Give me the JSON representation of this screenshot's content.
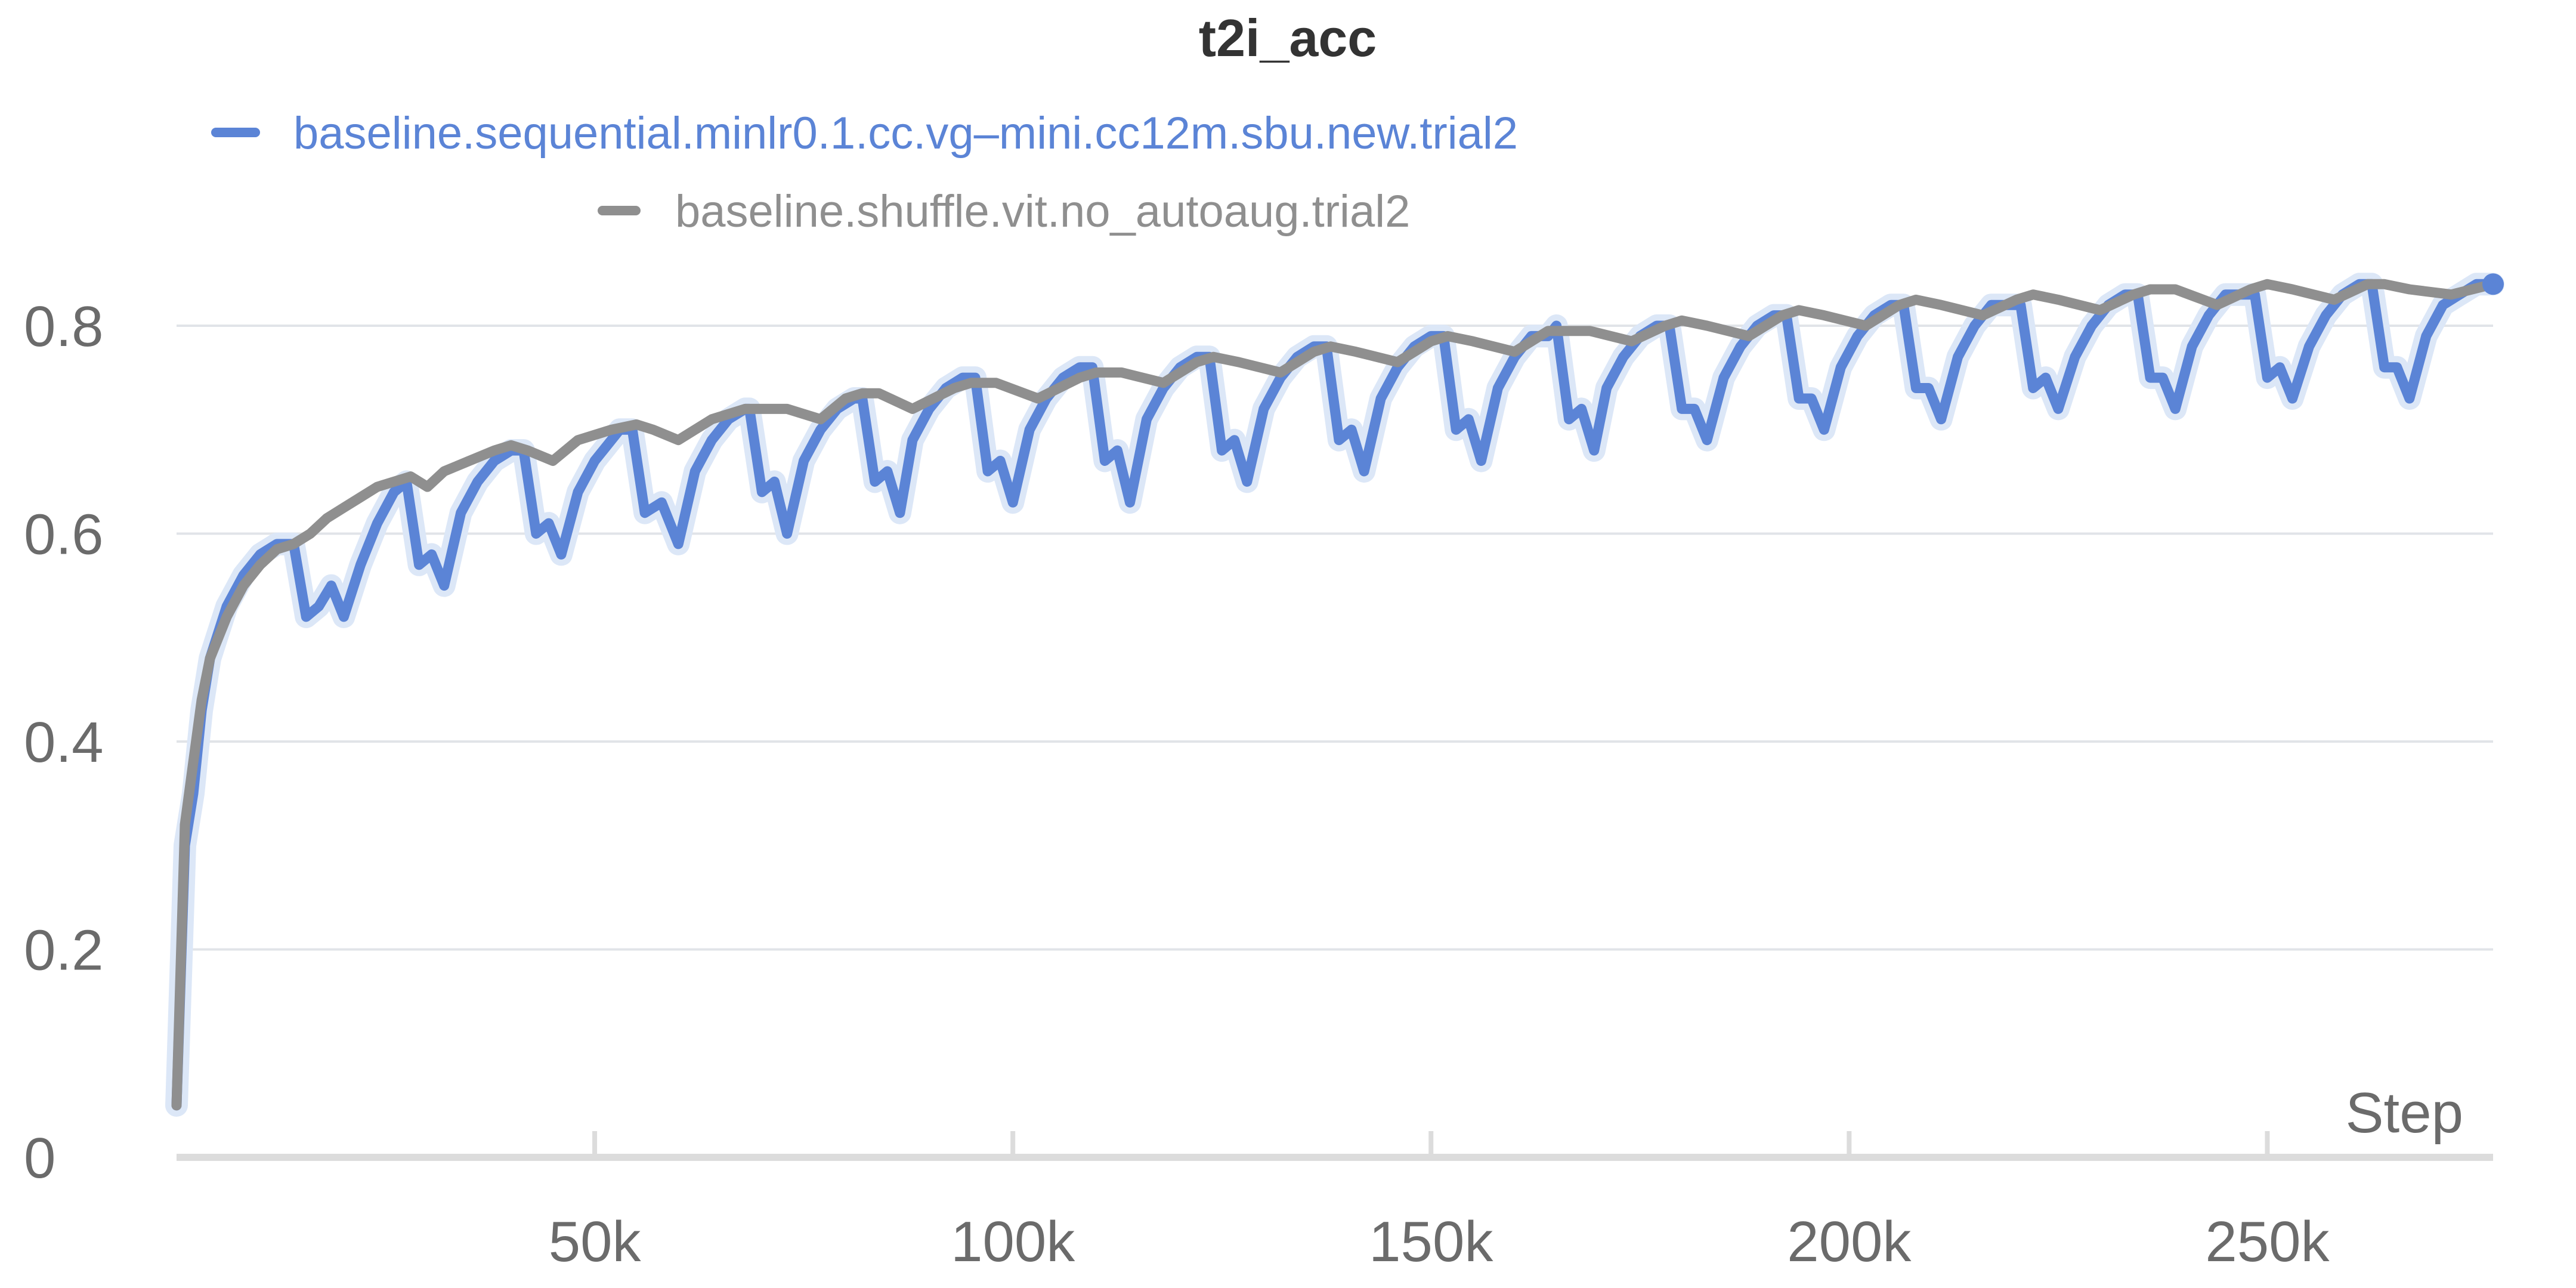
{
  "chart_data": {
    "type": "line",
    "title": "t2i_acc",
    "xlabel": "Step",
    "ylabel": "",
    "xlim": [
      0,
      277000
    ],
    "ylim": [
      0,
      0.9
    ],
    "grid": true,
    "legend_position": "top-center",
    "x_ticks": [
      {
        "value": 50000,
        "label": "50k"
      },
      {
        "value": 100000,
        "label": "100k"
      },
      {
        "value": 150000,
        "label": "150k"
      },
      {
        "value": 200000,
        "label": "200k"
      },
      {
        "value": 250000,
        "label": "250k"
      }
    ],
    "y_ticks": [
      {
        "value": 0,
        "label": "0"
      },
      {
        "value": 0.2,
        "label": "0.2"
      },
      {
        "value": 0.4,
        "label": "0.4"
      },
      {
        "value": 0.6,
        "label": "0.6"
      },
      {
        "value": 0.8,
        "label": "0.8"
      }
    ],
    "series": [
      {
        "name": "baseline.sequential.minlr0.1.cc.vg–mini.cc12m.sbu.new.trial2",
        "color": "#5b84d6",
        "raw_color": "#dce7f7",
        "x": [
          0,
          1000,
          2000,
          3000,
          4000,
          6000,
          8000,
          10000,
          12000,
          14000,
          15500,
          17000,
          18500,
          20000,
          22000,
          24000,
          26000,
          27500,
          29000,
          30500,
          32000,
          34000,
          36000,
          38000,
          40000,
          41500,
          43000,
          44500,
          46000,
          48000,
          50000,
          52000,
          53000,
          54500,
          56000,
          58000,
          60000,
          62000,
          64000,
          66000,
          68000,
          68500,
          70000,
          71500,
          73000,
          75000,
          77000,
          79000,
          81000,
          82000,
          83500,
          85000,
          86500,
          88000,
          90000,
          92000,
          94000,
          95500,
          97000,
          98500,
          100000,
          102000,
          104000,
          106000,
          108000,
          109500,
          111000,
          112500,
          114000,
          116000,
          118000,
          120000,
          122000,
          123500,
          125000,
          126500,
          128000,
          130000,
          132000,
          134000,
          136000,
          137500,
          139000,
          140500,
          142000,
          144000,
          146000,
          148000,
          150000,
          151500,
          153000,
          154500,
          156000,
          158000,
          160000,
          162000,
          164000,
          165000,
          166500,
          168000,
          169500,
          171000,
          173000,
          175000,
          177000,
          178500,
          180000,
          181500,
          183000,
          185000,
          187000,
          189000,
          191000,
          192500,
          194000,
          195500,
          197000,
          199000,
          201000,
          203000,
          205000,
          206500,
          208000,
          209500,
          211000,
          213000,
          215000,
          217000,
          219000,
          220500,
          222000,
          223500,
          225000,
          227000,
          229000,
          231000,
          233000,
          234500,
          236000,
          237500,
          239000,
          241000,
          243000,
          245000,
          247000,
          248500,
          250000,
          251500,
          253000,
          255000,
          257000,
          259000,
          261000,
          262500,
          264000,
          265500,
          267000,
          269000,
          271000,
          273000,
          275000,
          277000
        ],
        "values": [
          0.05,
          0.3,
          0.35,
          0.43,
          0.48,
          0.53,
          0.56,
          0.58,
          0.59,
          0.59,
          0.52,
          0.53,
          0.55,
          0.52,
          0.57,
          0.61,
          0.64,
          0.65,
          0.57,
          0.58,
          0.55,
          0.62,
          0.65,
          0.67,
          0.68,
          0.68,
          0.6,
          0.61,
          0.58,
          0.64,
          0.67,
          0.69,
          0.7,
          0.7,
          0.62,
          0.63,
          0.59,
          0.66,
          0.69,
          0.71,
          0.72,
          0.72,
          0.64,
          0.65,
          0.6,
          0.67,
          0.7,
          0.72,
          0.73,
          0.73,
          0.65,
          0.66,
          0.62,
          0.69,
          0.72,
          0.74,
          0.75,
          0.75,
          0.66,
          0.67,
          0.63,
          0.7,
          0.73,
          0.75,
          0.76,
          0.76,
          0.67,
          0.68,
          0.63,
          0.71,
          0.74,
          0.76,
          0.77,
          0.77,
          0.68,
          0.69,
          0.65,
          0.72,
          0.75,
          0.77,
          0.78,
          0.78,
          0.69,
          0.7,
          0.66,
          0.73,
          0.76,
          0.78,
          0.79,
          0.79,
          0.7,
          0.71,
          0.67,
          0.74,
          0.77,
          0.79,
          0.79,
          0.8,
          0.71,
          0.72,
          0.68,
          0.74,
          0.77,
          0.79,
          0.8,
          0.8,
          0.72,
          0.72,
          0.69,
          0.75,
          0.78,
          0.8,
          0.81,
          0.81,
          0.73,
          0.73,
          0.7,
          0.76,
          0.79,
          0.81,
          0.82,
          0.82,
          0.74,
          0.74,
          0.71,
          0.77,
          0.8,
          0.82,
          0.82,
          0.82,
          0.74,
          0.75,
          0.72,
          0.77,
          0.8,
          0.82,
          0.83,
          0.83,
          0.75,
          0.75,
          0.72,
          0.78,
          0.81,
          0.83,
          0.83,
          0.83,
          0.75,
          0.76,
          0.73,
          0.78,
          0.81,
          0.83,
          0.84,
          0.84,
          0.76,
          0.76,
          0.73,
          0.79,
          0.82,
          0.83,
          0.84,
          0.84
        ]
      },
      {
        "name": "baseline.shuffle.vit.no_autoaug.trial2",
        "color": "#8f8f8f",
        "x": [
          0,
          1000,
          2000,
          3000,
          4000,
          6000,
          8000,
          10000,
          12000,
          14000,
          16000,
          18000,
          20000,
          22000,
          24000,
          26000,
          28000,
          30000,
          32000,
          35000,
          38000,
          40000,
          42000,
          45000,
          48000,
          52000,
          55000,
          57000,
          60000,
          64000,
          68000,
          70000,
          73000,
          77000,
          80000,
          82000,
          84000,
          88000,
          93000,
          95000,
          98000,
          103000,
          108000,
          110000,
          113000,
          118000,
          122000,
          124000,
          127000,
          132000,
          136000,
          138000,
          141000,
          146000,
          150000,
          152000,
          155000,
          160000,
          164000,
          166000,
          169000,
          174000,
          178000,
          180000,
          183000,
          188000,
          192000,
          194000,
          197000,
          202000,
          206000,
          208000,
          211000,
          216000,
          220000,
          222000,
          225000,
          230000,
          234000,
          236000,
          239000,
          244000,
          248000,
          250000,
          253000,
          258000,
          262000,
          264000,
          267000,
          272000,
          277000
        ],
        "values": [
          0.05,
          0.32,
          0.38,
          0.44,
          0.48,
          0.52,
          0.55,
          0.57,
          0.585,
          0.59,
          0.6,
          0.615,
          0.625,
          0.635,
          0.645,
          0.65,
          0.655,
          0.645,
          0.66,
          0.67,
          0.68,
          0.685,
          0.68,
          0.67,
          0.69,
          0.7,
          0.705,
          0.7,
          0.69,
          0.71,
          0.72,
          0.72,
          0.72,
          0.71,
          0.73,
          0.735,
          0.735,
          0.72,
          0.74,
          0.745,
          0.745,
          0.73,
          0.75,
          0.755,
          0.755,
          0.745,
          0.765,
          0.77,
          0.765,
          0.755,
          0.775,
          0.78,
          0.775,
          0.765,
          0.785,
          0.79,
          0.785,
          0.775,
          0.795,
          0.795,
          0.795,
          0.785,
          0.8,
          0.805,
          0.8,
          0.79,
          0.81,
          0.815,
          0.81,
          0.8,
          0.82,
          0.825,
          0.82,
          0.81,
          0.825,
          0.83,
          0.825,
          0.815,
          0.83,
          0.835,
          0.835,
          0.82,
          0.835,
          0.84,
          0.835,
          0.825,
          0.84,
          0.84,
          0.835,
          0.83,
          0.84
        ]
      }
    ]
  }
}
